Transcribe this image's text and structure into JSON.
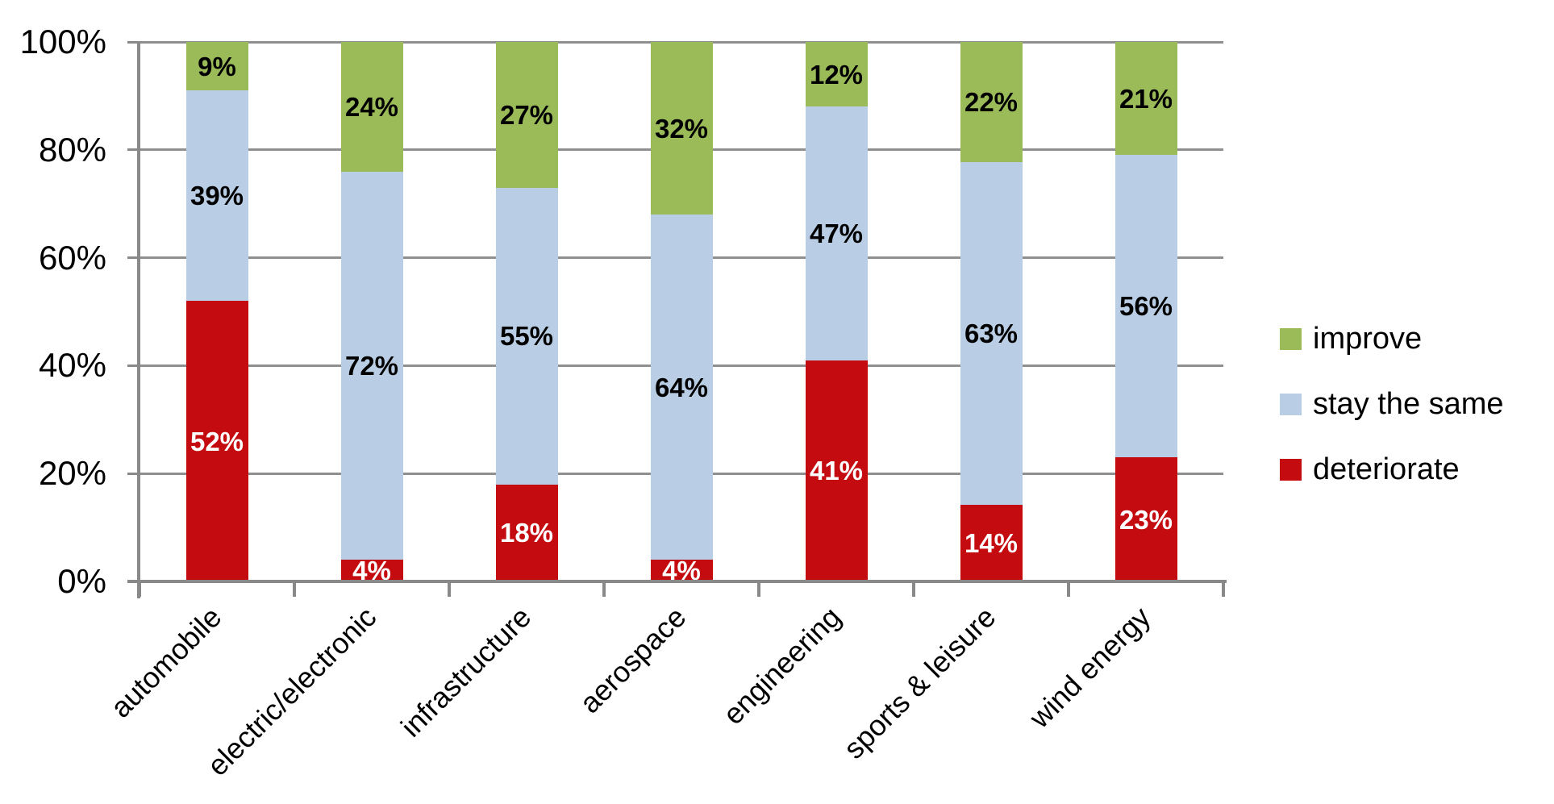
{
  "chart_data": {
    "type": "bar",
    "subtype": "stacked-100-percent",
    "title": "",
    "xlabel": "",
    "ylabel": "",
    "categories": [
      "automobile",
      "electric/electronic",
      "infrastructure",
      "aerospace",
      "engineering",
      "sports & leisure",
      "wind energy"
    ],
    "series": [
      {
        "name": "improve",
        "color": "#9BBB59",
        "label_color": "#000000",
        "values": [
          9,
          24,
          27,
          32,
          12,
          22,
          21
        ]
      },
      {
        "name": "stay the same",
        "color": "#B9CDE5",
        "label_color": "#000000",
        "values": [
          39,
          72,
          55,
          64,
          47,
          63,
          56
        ]
      },
      {
        "name": "deteriorate",
        "color": "#C40B10",
        "label_color": "#FFFFFF",
        "values": [
          52,
          4,
          18,
          4,
          41,
          14,
          23
        ]
      }
    ],
    "stack_order_bottom_to_top": [
      "deteriorate",
      "stay the same",
      "improve"
    ],
    "data_label_format": "{value}%",
    "y_axis": {
      "min": 0,
      "max": 100,
      "step": 20,
      "tick_labels": [
        "0%",
        "20%",
        "40%",
        "60%",
        "80%",
        "100%"
      ]
    },
    "x_axis": {
      "label_rotation_deg": -45
    },
    "legend": {
      "position": "right",
      "entries": [
        "improve",
        "stay the same",
        "deteriorate"
      ]
    },
    "grid": {
      "horizontal": true,
      "vertical": false,
      "color": "#8F8F8F"
    },
    "axis_color": "#898989",
    "background_color": "#FFFFFF"
  }
}
